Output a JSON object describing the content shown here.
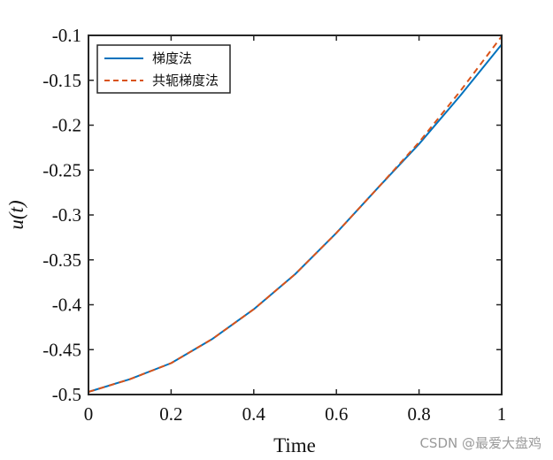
{
  "chart_data": {
    "type": "line",
    "title": "",
    "xlabel": "Time",
    "ylabel": "u(t)",
    "xlim": [
      0,
      1
    ],
    "ylim": [
      -0.5,
      -0.1
    ],
    "xticks": [
      0,
      0.2,
      0.4,
      0.6,
      0.8,
      1
    ],
    "xtick_labels": [
      "0",
      "0.2",
      "0.4",
      "0.6",
      "0.8",
      "1"
    ],
    "yticks": [
      -0.5,
      -0.45,
      -0.4,
      -0.35,
      -0.3,
      -0.25,
      -0.2,
      -0.15,
      -0.1
    ],
    "ytick_labels": [
      "-0.5",
      "-0.45",
      "-0.4",
      "-0.35",
      "-0.3",
      "-0.25",
      "-0.2",
      "-0.15",
      "-0.1"
    ],
    "grid": false,
    "legend_position": "top-left",
    "x": [
      0,
      0.1,
      0.2,
      0.3,
      0.4,
      0.5,
      0.6,
      0.7,
      0.8,
      0.9,
      1.0
    ],
    "series": [
      {
        "name": "梯度法",
        "color": "#0072BD",
        "style": "solid",
        "values": [
          -0.497,
          -0.483,
          -0.465,
          -0.438,
          -0.405,
          -0.366,
          -0.32,
          -0.27,
          -0.221,
          -0.167,
          -0.11
        ]
      },
      {
        "name": "共轭梯度法",
        "color": "#D95319",
        "style": "dashed",
        "values": [
          -0.497,
          -0.483,
          -0.465,
          -0.438,
          -0.405,
          -0.366,
          -0.32,
          -0.27,
          -0.219,
          -0.162,
          -0.101
        ]
      }
    ]
  },
  "watermark": "CSDN @最爱大盘鸡"
}
